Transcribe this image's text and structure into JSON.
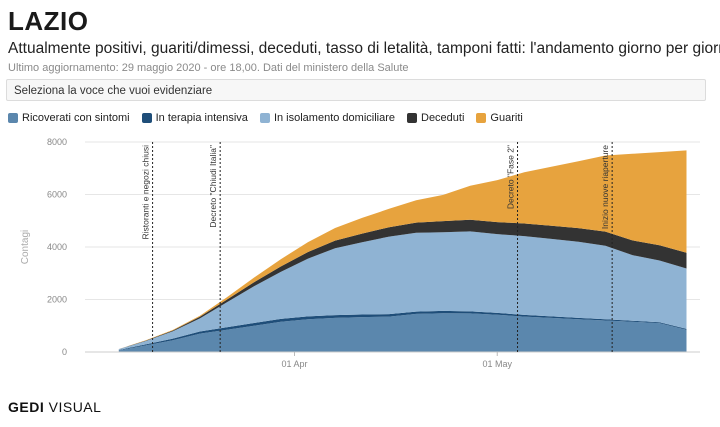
{
  "header": {
    "title": "LAZIO",
    "subtitle": "Attualmente positivi, guariti/dimessi, deceduti, tasso di letalità, tamponi fatti: l'andamento giorno per giorno",
    "updated": "Ultimo aggiornamento: 29 maggio 2020 - ore 18,00. Dati del ministero della Salute"
  },
  "selector": {
    "label": "Seleziona la voce che vuoi evidenziare"
  },
  "legend": [
    {
      "label": "Ricoverati con sintomi",
      "color": "#5b87ad"
    },
    {
      "label": "In terapia intensiva",
      "color": "#1f4e79"
    },
    {
      "label": "In isolamento domiciliare",
      "color": "#8fb3d3"
    },
    {
      "label": "Deceduti",
      "color": "#333333"
    },
    {
      "label": "Guariti",
      "color": "#e7a33e"
    }
  ],
  "logo": {
    "part1": "GEDI",
    "part2": "VISUAL"
  },
  "chart_data": {
    "type": "area",
    "stacked": true,
    "ylabel": "Contagi",
    "ylim": [
      0,
      8000
    ],
    "yticks": [
      "0",
      "2000",
      "4000",
      "6000",
      "8000"
    ],
    "xticks": [
      {
        "label": "01 Apr",
        "date": "2020-04-01"
      },
      {
        "label": "01 May",
        "date": "2020-05-01"
      }
    ],
    "x": [
      "2020-03-06",
      "2020-03-10",
      "2020-03-14",
      "2020-03-18",
      "2020-03-22",
      "2020-03-26",
      "2020-03-30",
      "2020-04-03",
      "2020-04-07",
      "2020-04-11",
      "2020-04-15",
      "2020-04-19",
      "2020-04-23",
      "2020-04-27",
      "2020-05-01",
      "2020-05-05",
      "2020-05-09",
      "2020-05-13",
      "2020-05-17",
      "2020-05-21",
      "2020-05-25",
      "2020-05-29"
    ],
    "series": [
      {
        "name": "Ricoverati con sintomi",
        "color": "#5b87ad",
        "values": [
          60,
          250,
          450,
          700,
          850,
          1000,
          1150,
          1250,
          1300,
          1330,
          1350,
          1450,
          1480,
          1470,
          1420,
          1350,
          1300,
          1250,
          1200,
          1150,
          1100,
          850
        ]
      },
      {
        "name": "In terapia intensiva",
        "color": "#1f4e79",
        "values": [
          15,
          40,
          60,
          80,
          95,
          105,
          110,
          108,
          105,
          100,
          95,
          90,
          85,
          75,
          70,
          65,
          58,
          50,
          45,
          40,
          36,
          30
        ]
      },
      {
        "name": "In isolamento domiciliare",
        "color": "#8fb3d3",
        "values": [
          30,
          130,
          280,
          500,
          950,
          1400,
          1800,
          2200,
          2550,
          2750,
          2950,
          3000,
          3000,
          3050,
          3000,
          3000,
          2950,
          2900,
          2800,
          2500,
          2350,
          2300
        ]
      },
      {
        "name": "Deceduti",
        "color": "#333333",
        "values": [
          5,
          15,
          30,
          60,
          100,
          150,
          200,
          250,
          290,
          330,
          360,
          390,
          420,
          440,
          460,
          480,
          500,
          520,
          540,
          560,
          580,
          600
        ]
      },
      {
        "name": "Guariti",
        "color": "#e7a33e",
        "values": [
          0,
          10,
          20,
          40,
          90,
          180,
          280,
          380,
          480,
          600,
          700,
          850,
          1000,
          1300,
          1600,
          1950,
          2250,
          2550,
          2900,
          3300,
          3550,
          3900
        ]
      }
    ],
    "annotations": [
      {
        "label": "Ristoranti e negozi chiusi",
        "date": "2020-03-11"
      },
      {
        "label": "Decreto \"Chiudi Italia\"",
        "date": "2020-03-21"
      },
      {
        "label": "Decreto \"Fase 2\"",
        "date": "2020-05-04"
      },
      {
        "label": "Inizio nuove riaperture",
        "date": "2020-05-18"
      }
    ]
  }
}
